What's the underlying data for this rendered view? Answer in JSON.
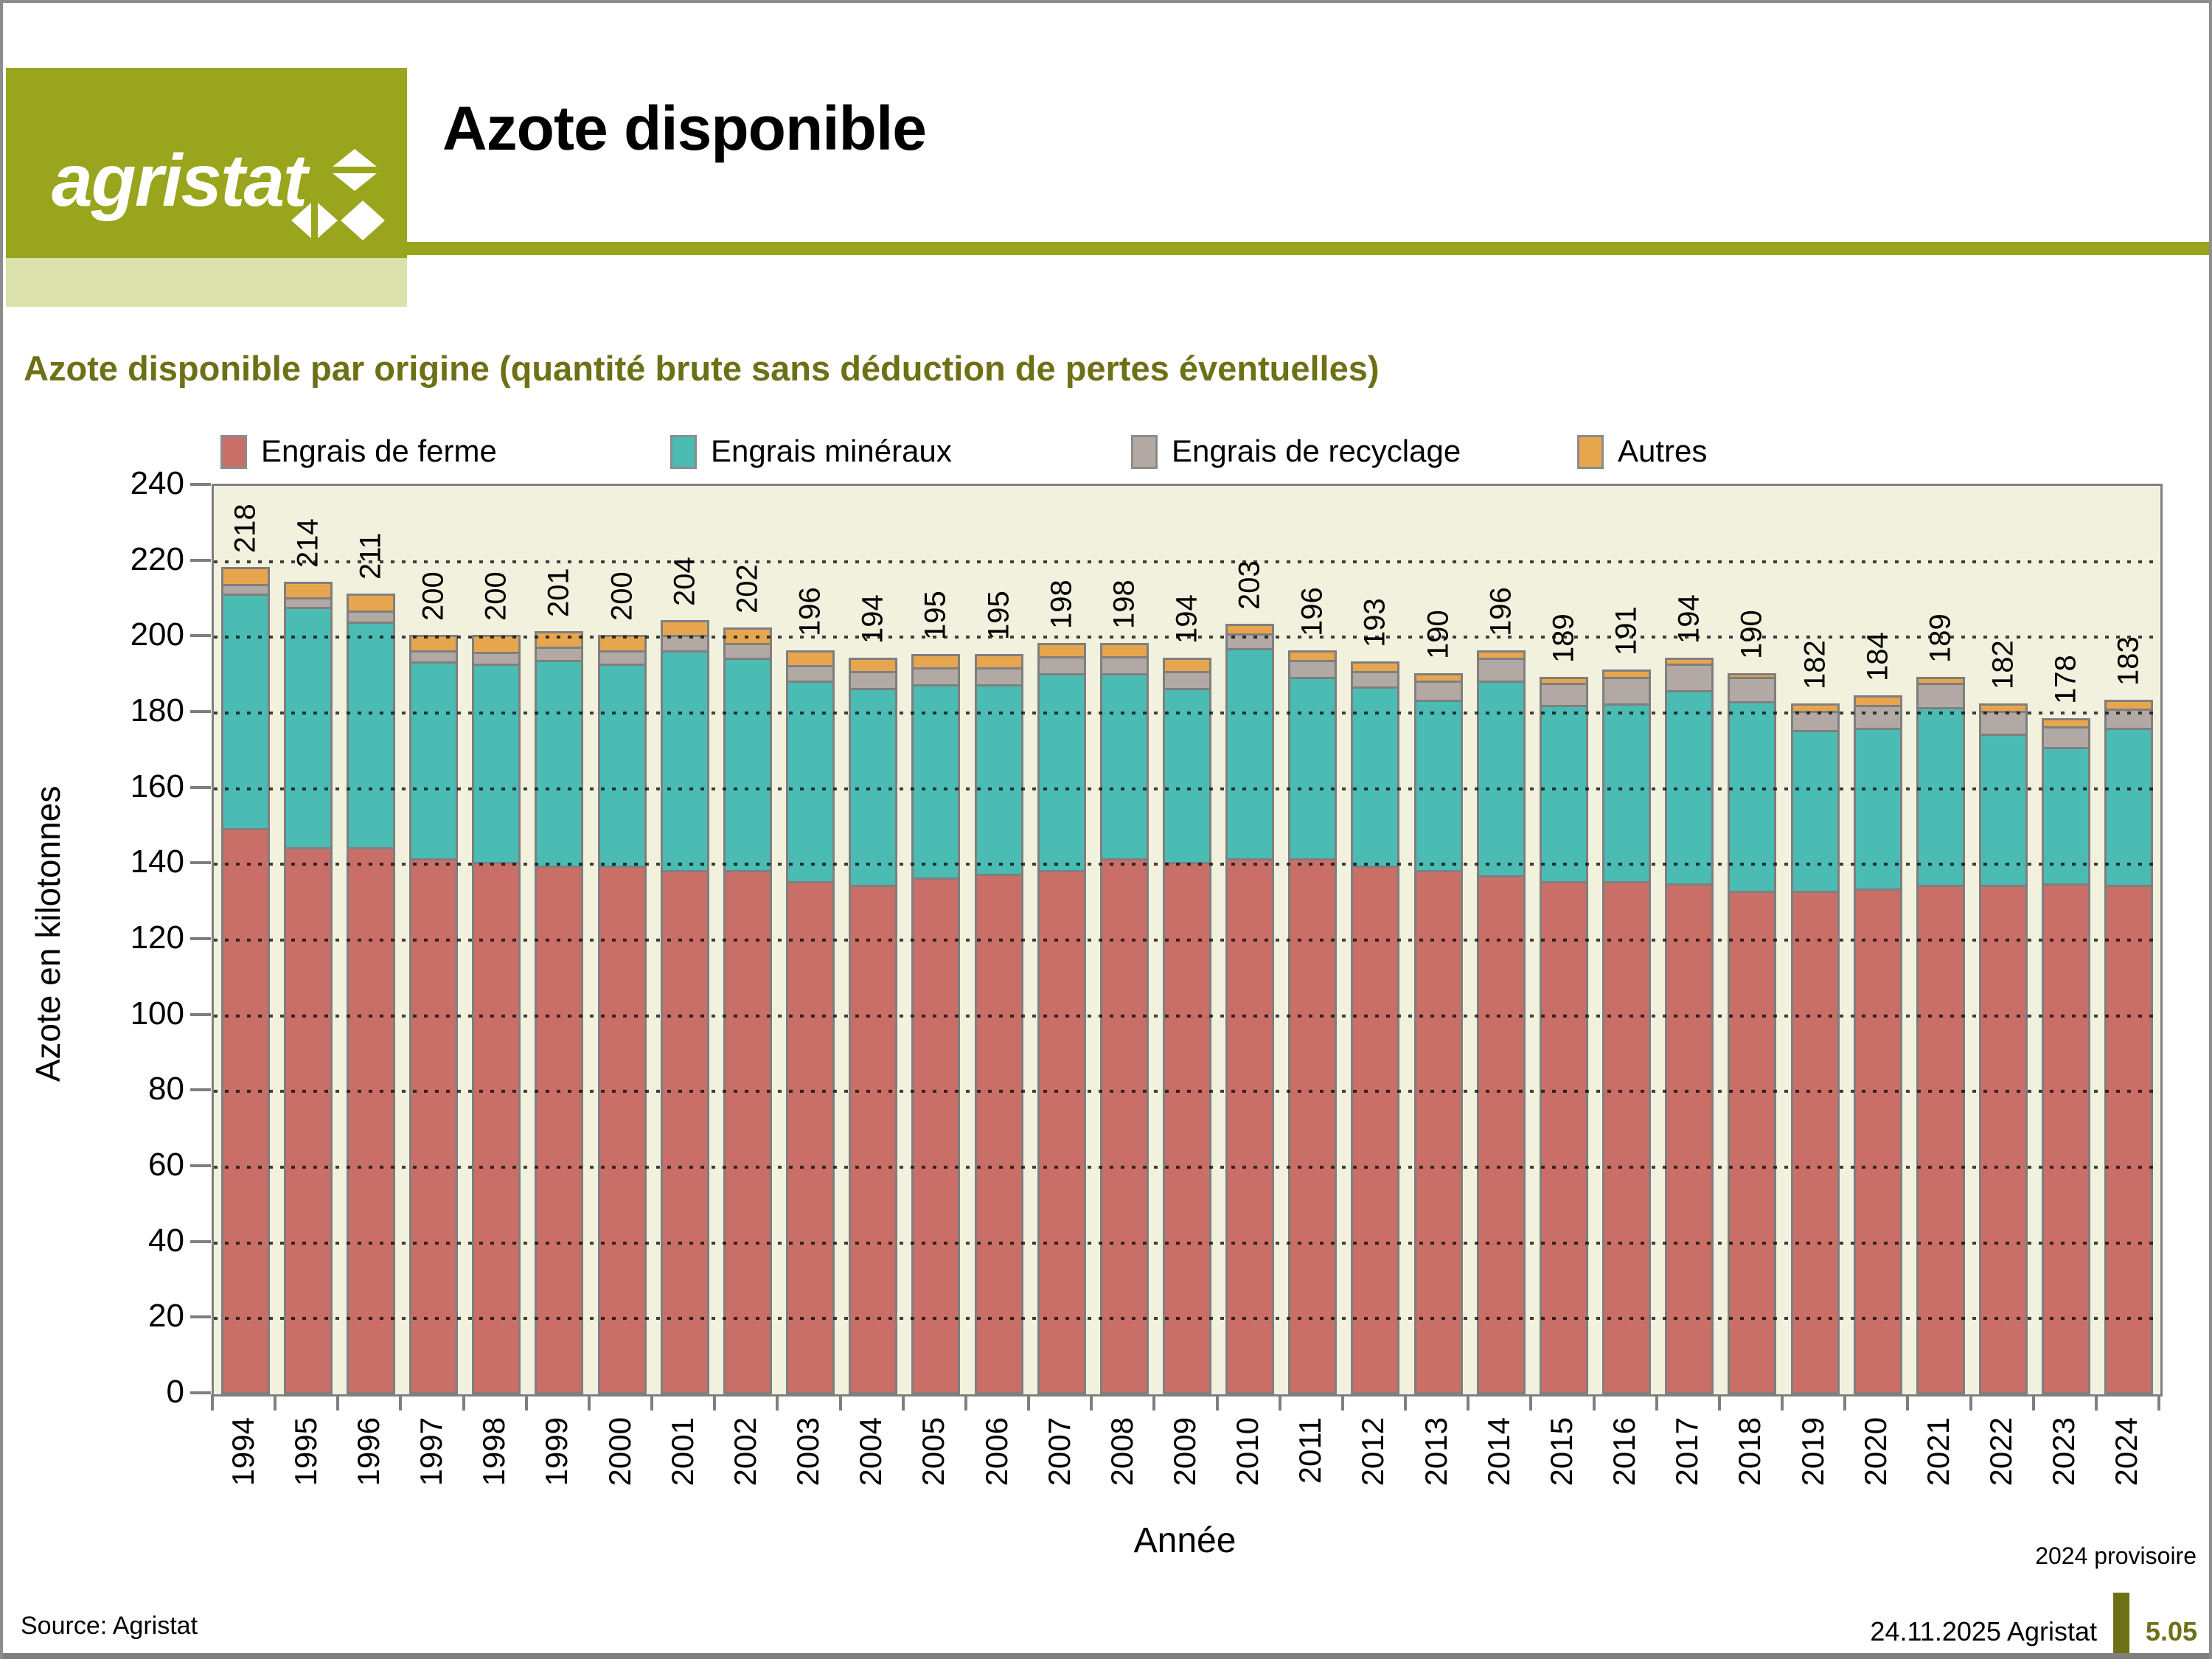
{
  "header": {
    "brand": "agristat",
    "title": "Azote disponible"
  },
  "subtitle": "Azote disponible par origine (quantité brute sans déduction de pertes éventuelles)",
  "chart_data": {
    "type": "bar",
    "stacked": true,
    "title": "Azote disponible par origine (quantité brute sans déduction de pertes éventuelles)",
    "xlabel": "Année",
    "ylabel": "Azote en kilotonnes",
    "ylim": [
      0,
      240
    ],
    "ytick_step": 20,
    "grid": "dotted-horizontal",
    "legend_position": "top",
    "categories": [
      "1994",
      "1995",
      "1996",
      "1997",
      "1998",
      "1999",
      "2000",
      "2001",
      "2002",
      "2003",
      "2004",
      "2005",
      "2006",
      "2007",
      "2008",
      "2009",
      "2010",
      "2011",
      "2012",
      "2013",
      "2014",
      "2015",
      "2016",
      "2017",
      "2018",
      "2019",
      "2020",
      "2021",
      "2022",
      "2023",
      "2024"
    ],
    "series": [
      {
        "name": "Engrais de ferme",
        "color": "#c96f68",
        "values": [
          149,
          144,
          144,
          141,
          140,
          139,
          139,
          138,
          138,
          135,
          134,
          136,
          137,
          138,
          141,
          140,
          141,
          141,
          139,
          138,
          136.5,
          135,
          135,
          134.5,
          132.5,
          132.5,
          133,
          134,
          134,
          134.5,
          134
        ]
      },
      {
        "name": "Engrais minéraux",
        "color": "#4bbcb4",
        "values": [
          62,
          63.5,
          59.5,
          52,
          52.5,
          54.5,
          53.5,
          58,
          56,
          53,
          52,
          51,
          50,
          52,
          49,
          46,
          55.5,
          48,
          47.5,
          45,
          51.5,
          46.5,
          47,
          51,
          50,
          42.5,
          42.5,
          47,
          40,
          36,
          41.5
        ]
      },
      {
        "name": "Engrais de recyclage",
        "color": "#b3a9a4",
        "values": [
          2.5,
          2.5,
          3,
          3,
          3,
          3.5,
          3.5,
          4,
          4,
          4,
          4.5,
          4.5,
          4.5,
          4.5,
          4.5,
          4.5,
          4,
          4.5,
          4,
          5,
          6,
          6,
          7,
          7,
          6.5,
          5,
          6,
          6.5,
          6,
          5.5,
          5
        ]
      },
      {
        "name": "Autres",
        "color": "#e7a64e",
        "values": [
          4.5,
          4,
          4.5,
          4,
          4.5,
          4,
          4,
          4,
          4,
          4,
          3.5,
          3.5,
          3.5,
          3.5,
          3.5,
          3.5,
          2.5,
          2.5,
          2.5,
          2,
          2,
          1.5,
          2,
          1.5,
          1,
          2,
          2.5,
          1.5,
          2,
          2,
          2.5
        ]
      }
    ],
    "totals": [
      218,
      214,
      211,
      200,
      200,
      201,
      200,
      204,
      202,
      196,
      194,
      195,
      195,
      198,
      198,
      194,
      203,
      196,
      193,
      190,
      196,
      189,
      191,
      194,
      190,
      182,
      184,
      189,
      182,
      178,
      183
    ],
    "note": "2024 provisoire"
  },
  "colors": {
    "olive": "#98a51d",
    "olive_pale": "#dce2ac",
    "olive_text": "#6e7016",
    "plot_bg": "#f1f1de",
    "axis_gray": "#7f7f7f"
  },
  "footer": {
    "source": "Source: Agristat",
    "date_author": "24.11.2025 Agristat",
    "page_number": "5.05"
  }
}
